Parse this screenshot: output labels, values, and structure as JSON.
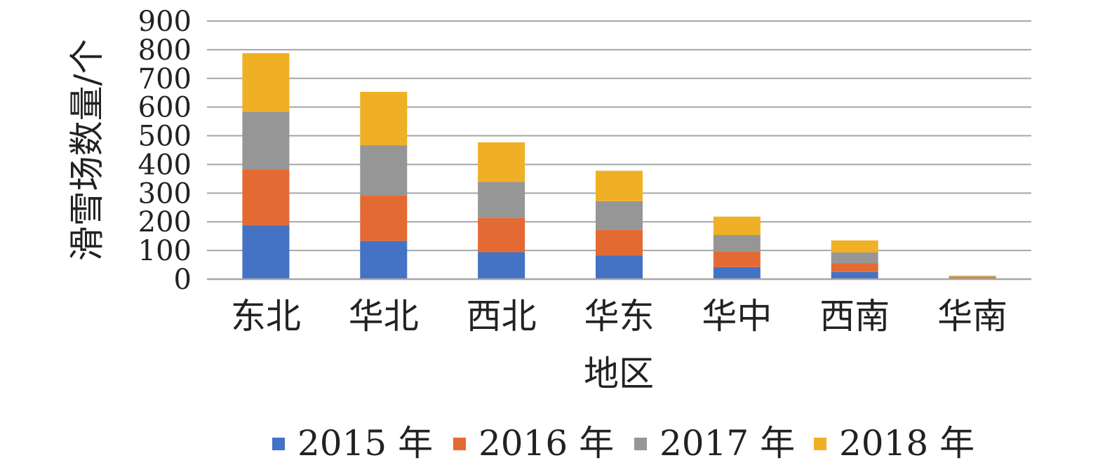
{
  "chart_data": {
    "type": "bar",
    "stacked": true,
    "xlabel": "地区",
    "ylabel": "滑雪场数量/个",
    "ylim": [
      0,
      900
    ],
    "yticks": [
      0,
      100,
      200,
      300,
      400,
      500,
      600,
      700,
      800,
      900
    ],
    "grid": true,
    "legend_position": "bottom",
    "categories": [
      "东北",
      "华北",
      "西北",
      "华东",
      "华中",
      "西南",
      "华南"
    ],
    "series": [
      {
        "name": "2015 年",
        "color": "#4472c4",
        "values": [
          187,
          133,
          94,
          82,
          42,
          25,
          3
        ]
      },
      {
        "name": "2016 年",
        "color": "#e46a34",
        "values": [
          196,
          158,
          119,
          90,
          55,
          30,
          3
        ]
      },
      {
        "name": "2017 年",
        "color": "#969696",
        "values": [
          201,
          176,
          126,
          100,
          57,
          38,
          3
        ]
      },
      {
        "name": "2018 年",
        "color": "#f0b025",
        "values": [
          204,
          186,
          138,
          106,
          64,
          42,
          3
        ]
      }
    ]
  }
}
